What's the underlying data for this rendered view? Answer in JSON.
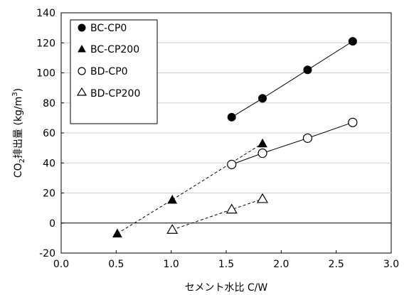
{
  "chart_data": {
    "type": "scatter",
    "title": "",
    "xlabel": "セメント水比 C/W",
    "ylabel_main": "CO",
    "ylabel_sub": "2",
    "ylabel_rest": "排出量 (kg/m",
    "ylabel_sup": "3",
    "ylabel_end": ")",
    "xlim": [
      0.0,
      3.0
    ],
    "ylim": [
      -20,
      140
    ],
    "xticks": [
      "0.0",
      "0.5",
      "1.0",
      "1.5",
      "2.0",
      "2.5",
      "3.0"
    ],
    "yticks": [
      "-20",
      "0",
      "20",
      "40",
      "60",
      "80",
      "100",
      "120",
      "140"
    ],
    "legend_position": "top-left",
    "series": [
      {
        "name": "BC-CP0",
        "marker": "circle-filled",
        "line": "solid",
        "color": "#000000",
        "points": [
          [
            1.55,
            70.5
          ],
          [
            1.83,
            83.0
          ],
          [
            2.24,
            102.0
          ],
          [
            2.65,
            121.0
          ]
        ]
      },
      {
        "name": "BC-CP200",
        "marker": "triangle-filled",
        "line": "dashed",
        "color": "#000000",
        "points": [
          [
            0.51,
            -7.0
          ],
          [
            1.01,
            15.5
          ],
          [
            1.83,
            53.0
          ]
        ]
      },
      {
        "name": "BD-CP0",
        "marker": "circle-open",
        "line": "solid",
        "color": "#000000",
        "points": [
          [
            1.55,
            39.0
          ],
          [
            1.83,
            46.5
          ],
          [
            2.24,
            56.5
          ],
          [
            2.65,
            67.0
          ]
        ]
      },
      {
        "name": "BD-CP200",
        "marker": "triangle-open",
        "line": "dashed",
        "color": "#000000",
        "points": [
          [
            1.01,
            -4.5
          ],
          [
            1.55,
            9.0
          ],
          [
            1.83,
            16.0
          ]
        ]
      }
    ]
  }
}
